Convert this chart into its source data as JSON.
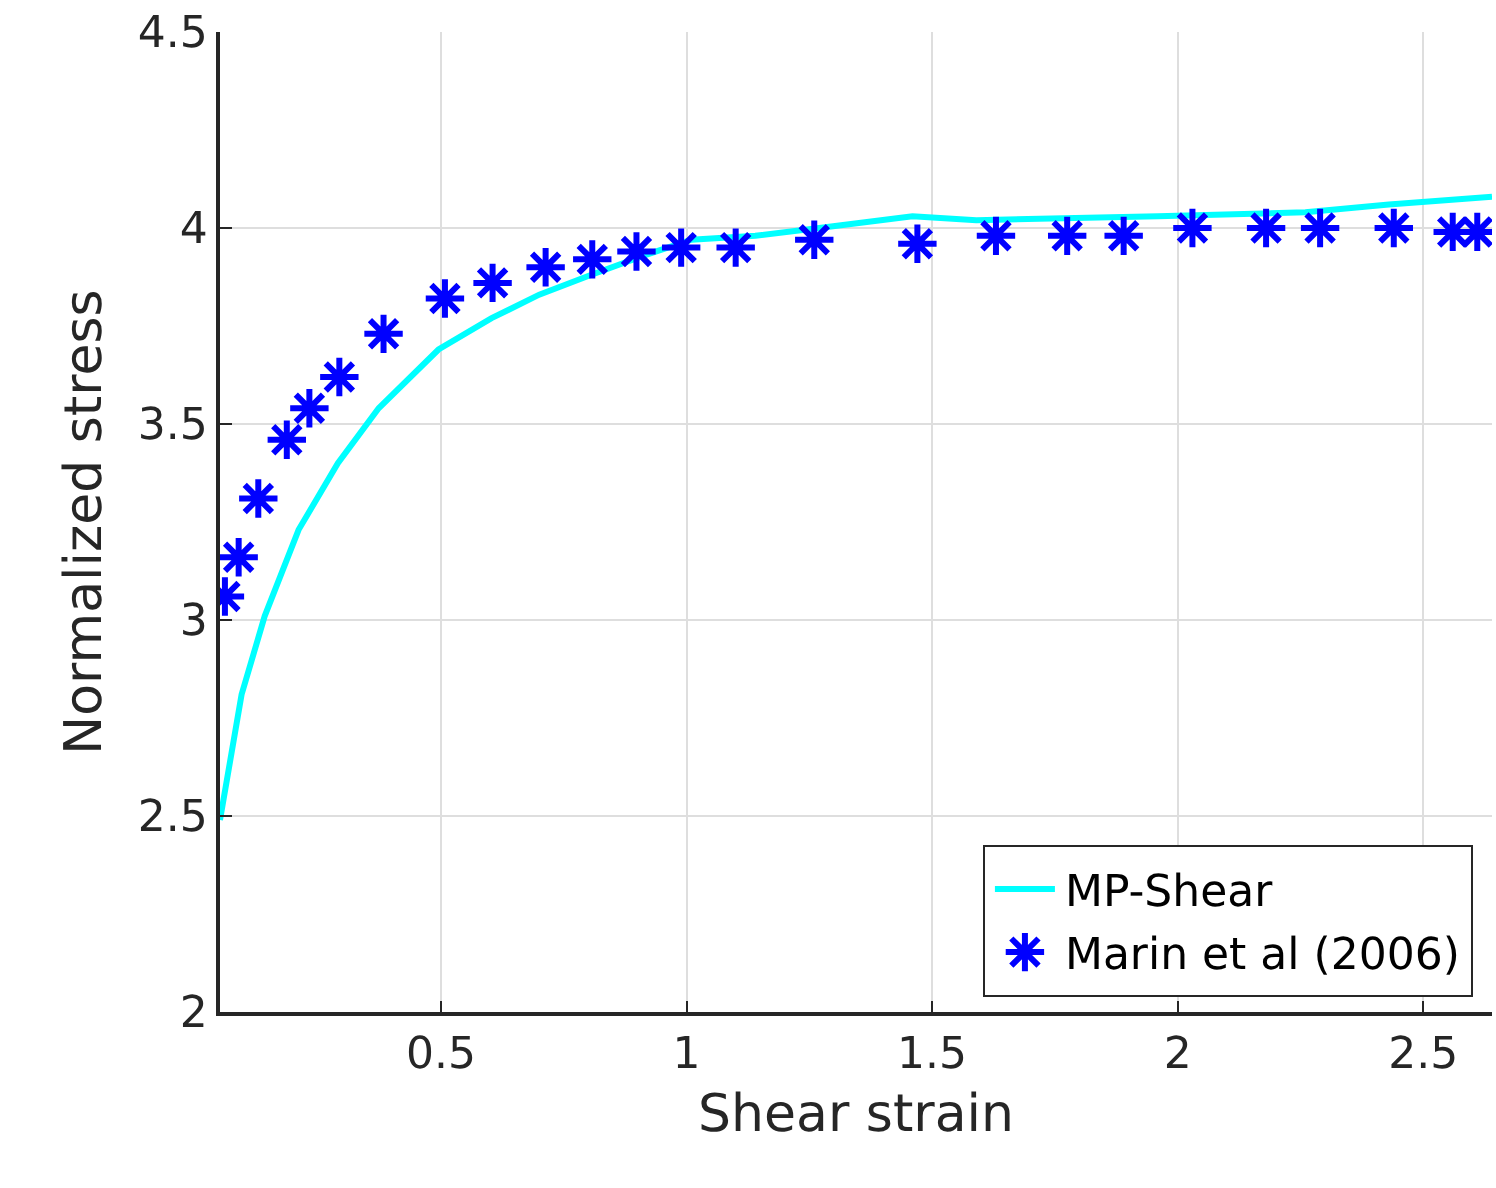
{
  "chart_data": {
    "type": "line",
    "xlabel": "Shear strain",
    "ylabel": "Normalized stress",
    "xlim": [
      0.05,
      2.64
    ],
    "ylim": [
      2,
      4.5
    ],
    "xticks": [
      0.5,
      1,
      1.5,
      2,
      2.5
    ],
    "yticks": [
      2,
      2.5,
      3,
      3.5,
      4,
      4.5
    ],
    "grid": true,
    "legend": "bottom right",
    "series": [
      {
        "name": "MP-Shear",
        "color": "#00ffff",
        "marker": "none",
        "line_style": "solid",
        "x": [
          0.05,
          0.094,
          0.141,
          0.21,
          0.29,
          0.373,
          0.495,
          0.603,
          0.7,
          0.805,
          0.914,
          1.01,
          1.14,
          1.27,
          1.46,
          1.59,
          1.96,
          2.26,
          2.43,
          2.64
        ],
        "values": [
          2.49,
          2.81,
          3.01,
          3.23,
          3.4,
          3.54,
          3.69,
          3.77,
          3.83,
          3.88,
          3.93,
          3.97,
          3.98,
          4.0,
          4.03,
          4.02,
          4.03,
          4.04,
          4.06,
          4.08
        ]
      },
      {
        "name": "Marin et al (2006)",
        "type": "scatter",
        "color": "#0000ff",
        "marker": "cross",
        "x": [
          0.06,
          0.088,
          0.128,
          0.186,
          0.232,
          0.293,
          0.383,
          0.508,
          0.605,
          0.713,
          0.808,
          0.898,
          0.989,
          1.1,
          1.26,
          1.47,
          1.63,
          1.775,
          1.89,
          2.03,
          2.18,
          2.29,
          2.44,
          2.56,
          2.61
        ],
        "values": [
          3.06,
          3.16,
          3.31,
          3.46,
          3.54,
          3.62,
          3.73,
          3.82,
          3.86,
          3.9,
          3.92,
          3.94,
          3.95,
          3.95,
          3.97,
          3.96,
          3.98,
          3.98,
          3.98,
          4.0,
          4.0,
          4.0,
          4.0,
          3.99,
          3.99
        ]
      }
    ]
  }
}
